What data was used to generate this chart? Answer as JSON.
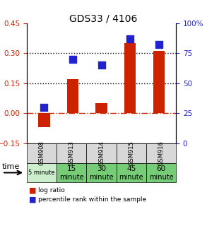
{
  "title": "GDS33 / 4106",
  "samples": [
    "GSM908",
    "GSM913",
    "GSM914",
    "GSM915",
    "GSM916"
  ],
  "log_ratio": [
    -0.07,
    0.17,
    0.05,
    0.35,
    0.31
  ],
  "percentile": [
    30,
    70,
    65,
    87,
    82
  ],
  "ylim_left": [
    -0.15,
    0.45
  ],
  "ylim_right": [
    0,
    100
  ],
  "yticks_left": [
    -0.15,
    0.0,
    0.15,
    0.3,
    0.45
  ],
  "yticks_right": [
    0,
    25,
    50,
    75,
    100
  ],
  "bar_color": "#cc2200",
  "square_color": "#2222cc",
  "hline_dotted_values": [
    0.15,
    0.3
  ],
  "hline_dash_value": 0.0,
  "time_bg_5min": "#cceecc",
  "time_bg_other": "#77cc77",
  "sample_bg": "#d8d8d8",
  "legend_items": [
    "log ratio",
    "percentile rank within the sample"
  ],
  "left_axis_color": "#cc2200",
  "right_axis_color": "#2222cc",
  "time_labels": [
    "5 minute",
    "15\nminute",
    "30\nminute",
    "45\nminute",
    "60\nminute"
  ]
}
